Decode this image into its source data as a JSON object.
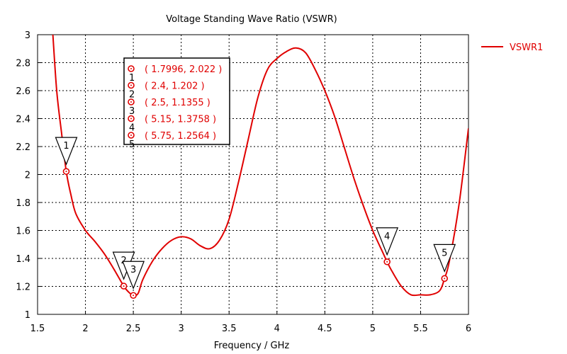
{
  "chart_data": {
    "type": "line",
    "title": "Voltage Standing Wave Ratio (VSWR)",
    "xlabel": "Frequency / GHz",
    "ylabel": "",
    "xlim": [
      1.5,
      6
    ],
    "ylim": [
      1,
      3
    ],
    "grid": true,
    "legend_position": "top-right",
    "x_ticks": [
      "1.5",
      "2",
      "2.5",
      "3",
      "3.5",
      "4",
      "4.5",
      "5",
      "5.5",
      "6"
    ],
    "y_ticks": [
      "1",
      "1.2",
      "1.4",
      "1.6",
      "1.8",
      "2",
      "2.2",
      "2.4",
      "2.6",
      "2.8",
      "3"
    ],
    "series": [
      {
        "name": "VSWR1",
        "color": "#e00000",
        "points": [
          [
            1.66,
            3.0
          ],
          [
            1.7,
            2.6
          ],
          [
            1.75,
            2.3
          ],
          [
            1.7996,
            2.022
          ],
          [
            1.85,
            1.85
          ],
          [
            1.9,
            1.72
          ],
          [
            2.0,
            1.6
          ],
          [
            2.1,
            1.52
          ],
          [
            2.2,
            1.43
          ],
          [
            2.3,
            1.32
          ],
          [
            2.4,
            1.202
          ],
          [
            2.45,
            1.16
          ],
          [
            2.5,
            1.1355
          ],
          [
            2.55,
            1.15
          ],
          [
            2.6,
            1.25
          ],
          [
            2.7,
            1.38
          ],
          [
            2.8,
            1.47
          ],
          [
            2.9,
            1.53
          ],
          [
            3.0,
            1.555
          ],
          [
            3.1,
            1.54
          ],
          [
            3.2,
            1.49
          ],
          [
            3.3,
            1.47
          ],
          [
            3.4,
            1.53
          ],
          [
            3.5,
            1.68
          ],
          [
            3.6,
            1.95
          ],
          [
            3.7,
            2.25
          ],
          [
            3.8,
            2.55
          ],
          [
            3.9,
            2.75
          ],
          [
            4.0,
            2.83
          ],
          [
            4.1,
            2.88
          ],
          [
            4.2,
            2.905
          ],
          [
            4.3,
            2.87
          ],
          [
            4.4,
            2.75
          ],
          [
            4.5,
            2.6
          ],
          [
            4.6,
            2.42
          ],
          [
            4.7,
            2.2
          ],
          [
            4.8,
            1.98
          ],
          [
            4.9,
            1.78
          ],
          [
            5.0,
            1.6
          ],
          [
            5.1,
            1.45
          ],
          [
            5.15,
            1.3758
          ],
          [
            5.2,
            1.31
          ],
          [
            5.3,
            1.2
          ],
          [
            5.4,
            1.14
          ],
          [
            5.5,
            1.14
          ],
          [
            5.6,
            1.14
          ],
          [
            5.7,
            1.17
          ],
          [
            5.75,
            1.2564
          ],
          [
            5.8,
            1.38
          ],
          [
            5.9,
            1.78
          ],
          [
            6.0,
            2.33
          ]
        ]
      }
    ],
    "markers": [
      {
        "id": "1",
        "x": 1.7996,
        "y": 2.022,
        "label": "( 1.7996, 2.022 )"
      },
      {
        "id": "2",
        "x": 2.4,
        "y": 1.202,
        "label": "( 2.4, 1.202 )"
      },
      {
        "id": "3",
        "x": 2.5,
        "y": 1.1355,
        "label": "( 2.5, 1.1355 )"
      },
      {
        "id": "4",
        "x": 5.15,
        "y": 1.3758,
        "label": "( 5.15, 1.3758 )"
      },
      {
        "id": "5",
        "x": 5.75,
        "y": 1.2564,
        "label": "( 5.75, 1.2564 )"
      }
    ]
  }
}
